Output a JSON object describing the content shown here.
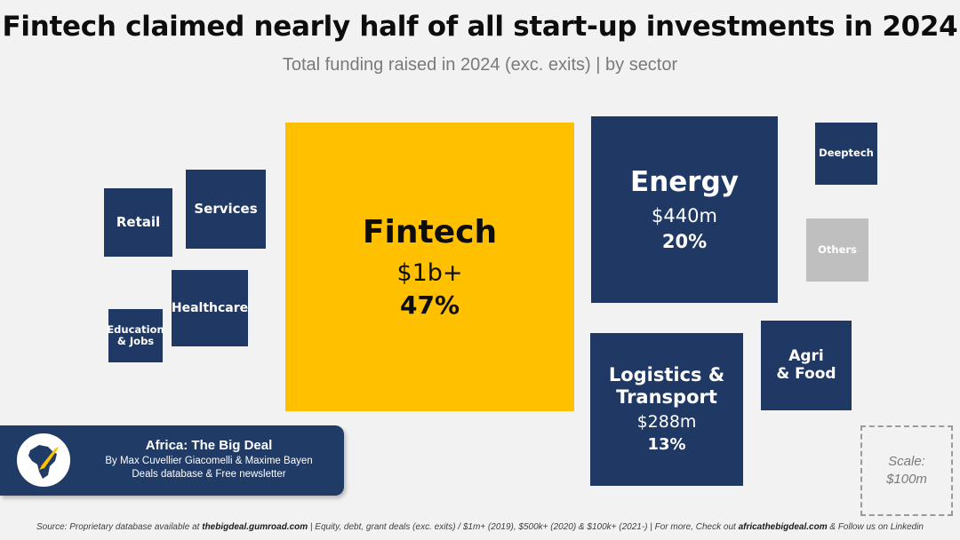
{
  "header": {
    "title": "Fintech claimed nearly half of all start-up investments in 2024",
    "subtitle": "Total funding raised in 2024 (exc. exits) | by sector"
  },
  "chart_data": {
    "type": "treemap",
    "title": "Fintech claimed nearly half of all start-up investments in 2024",
    "subtitle": "Total funding raised in 2024 (exc. exits) | by sector",
    "sectors": [
      {
        "name": "Fintech",
        "value_label": "$1b+",
        "percent": "47%",
        "color": "#ffc000"
      },
      {
        "name": "Energy",
        "value_label": "$440m",
        "percent": "20%",
        "color": "#1f3864"
      },
      {
        "name": "Logistics & Transport",
        "value_label": "$288m",
        "percent": "13%",
        "color": "#1f3864"
      },
      {
        "name": "Agri & Food",
        "value_label": "",
        "percent": "",
        "color": "#1f3864"
      },
      {
        "name": "Services",
        "value_label": "",
        "percent": "",
        "color": "#1f3864"
      },
      {
        "name": "Retail",
        "value_label": "",
        "percent": "",
        "color": "#1f3864"
      },
      {
        "name": "Healthcare",
        "value_label": "",
        "percent": "",
        "color": "#1f3864"
      },
      {
        "name": "Education & Jobs",
        "value_label": "",
        "percent": "",
        "color": "#1f3864"
      },
      {
        "name": "Deeptech",
        "value_label": "",
        "percent": "",
        "color": "#1f3864"
      },
      {
        "name": "Others",
        "value_label": "",
        "percent": "",
        "color": "#bfbfbf"
      }
    ],
    "scale": {
      "label": "Scale:",
      "value": "$100m"
    }
  },
  "branding": {
    "name": "Africa: The Big Deal",
    "line1": "By Max Cuvellier Giacomelli & Maxime Bayen",
    "line2": "Deals database & Free newsletter",
    "logo_icon": "africa-rocket-icon"
  },
  "footer": {
    "source_prefix": "Source: Proprietary database available at ",
    "source_link1": "thebigdeal.gumroad.com",
    "source_mid": " | Equity, debt, grant deals (exc. exits) / $1m+ (2019), $500k+ (2020) & $100k+ (2021-) | For more, Check out ",
    "source_link2": "africathebigdeal.com",
    "source_suffix": " & Follow us on Linkedin"
  }
}
